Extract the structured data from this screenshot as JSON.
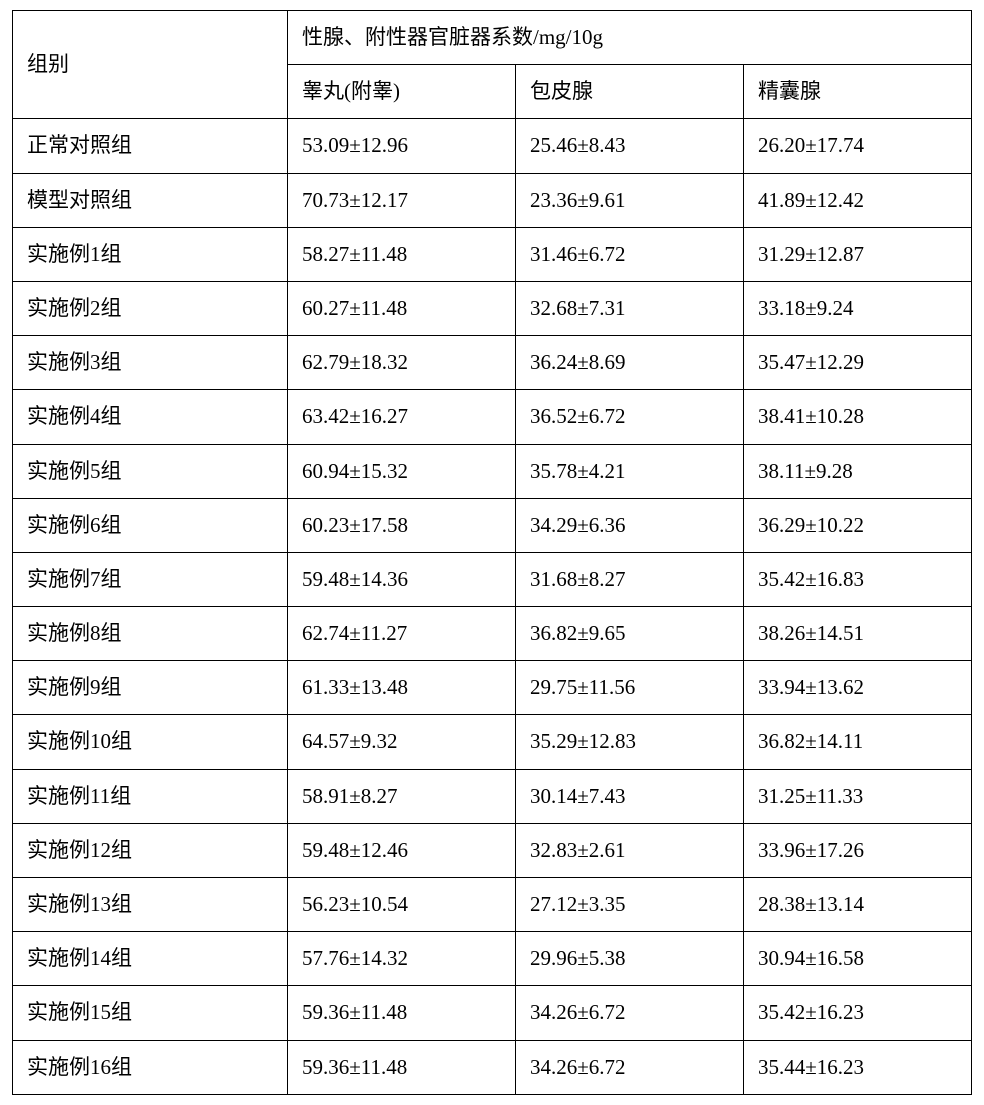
{
  "table": {
    "header": {
      "group": "组别",
      "span_title": "性腺、附性器官脏器系数/mg/10g",
      "col1": "睾丸(附睾)",
      "col2": "包皮腺",
      "col3": "精囊腺"
    },
    "rows": [
      {
        "group": "正常对照组",
        "c1": "53.09±12.96",
        "c2": "25.46±8.43",
        "c3": "26.20±17.74"
      },
      {
        "group": "模型对照组",
        "c1": "70.73±12.17",
        "c2": "23.36±9.61",
        "c3": "41.89±12.42"
      },
      {
        "group": "实施例1组",
        "c1": "58.27±11.48",
        "c2": "31.46±6.72",
        "c3": "31.29±12.87"
      },
      {
        "group": "实施例2组",
        "c1": "60.27±11.48",
        "c2": "32.68±7.31",
        "c3": "33.18±9.24"
      },
      {
        "group": "实施例3组",
        "c1": "62.79±18.32",
        "c2": "36.24±8.69",
        "c3": "35.47±12.29"
      },
      {
        "group": "实施例4组",
        "c1": "63.42±16.27",
        "c2": "36.52±6.72",
        "c3": "38.41±10.28"
      },
      {
        "group": "实施例5组",
        "c1": "60.94±15.32",
        "c2": "35.78±4.21",
        "c3": "38.11±9.28"
      },
      {
        "group": "实施例6组",
        "c1": "60.23±17.58",
        "c2": "34.29±6.36",
        "c3": "36.29±10.22"
      },
      {
        "group": "实施例7组",
        "c1": "59.48±14.36",
        "c2": "31.68±8.27",
        "c3": "35.42±16.83"
      },
      {
        "group": "实施例8组",
        "c1": "62.74±11.27",
        "c2": "36.82±9.65",
        "c3": "38.26±14.51"
      },
      {
        "group": "实施例9组",
        "c1": "61.33±13.48",
        "c2": "29.75±11.56",
        "c3": "33.94±13.62"
      },
      {
        "group": "实施例10组",
        "c1": "64.57±9.32",
        "c2": "35.29±12.83",
        "c3": "36.82±14.11"
      },
      {
        "group": "实施例11组",
        "c1": "58.91±8.27",
        "c2": "30.14±7.43",
        "c3": "31.25±11.33"
      },
      {
        "group": "实施例12组",
        "c1": "59.48±12.46",
        "c2": "32.83±2.61",
        "c3": "33.96±17.26"
      },
      {
        "group": "实施例13组",
        "c1": "56.23±10.54",
        "c2": "27.12±3.35",
        "c3": "28.38±13.14"
      },
      {
        "group": "实施例14组",
        "c1": "57.76±14.32",
        "c2": "29.96±5.38",
        "c3": "30.94±16.58"
      },
      {
        "group": "实施例15组",
        "c1": "59.36±11.48",
        "c2": "34.26±6.72",
        "c3": "35.42±16.23"
      },
      {
        "group": "实施例16组",
        "c1": "59.36±11.48",
        "c2": "34.26±6.72",
        "c3": "35.44±16.23"
      }
    ]
  }
}
